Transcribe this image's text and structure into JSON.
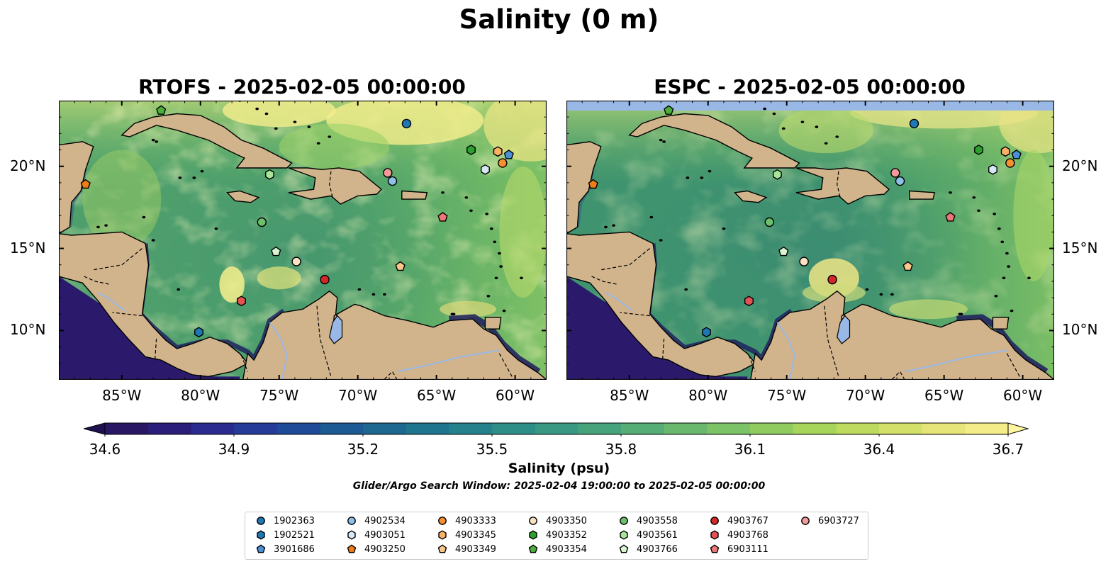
{
  "suptitle": "Salinity (0 m)",
  "panels": [
    {
      "title": "RTOFS - 2025-02-05 00:00:00",
      "model": "rtofs"
    },
    {
      "title": "ESPC - 2025-02-05 00:00:00",
      "model": "espc"
    }
  ],
  "axes": {
    "x_ticks": [
      "85°W",
      "80°W",
      "75°W",
      "70°W",
      "65°W",
      "60°W"
    ],
    "x_tick_values": [
      -85,
      -80,
      -75,
      -70,
      -65,
      -60
    ],
    "y_ticks": [
      "20°N",
      "15°N",
      "10°N"
    ],
    "y_tick_values": [
      20,
      15,
      10
    ],
    "lon_range": [
      -89,
      -58
    ],
    "lat_range": [
      7,
      24
    ]
  },
  "colorbar": {
    "ticks": [
      "34.6",
      "34.9",
      "35.2",
      "35.5",
      "35.8",
      "36.1",
      "36.4",
      "36.7"
    ],
    "range": [
      34.6,
      36.7
    ],
    "label": "Salinity (psu)",
    "colormap": "summer-green / haline",
    "extend": "both"
  },
  "search_window": "Glider/Argo Search Window: 2025-02-04 19:00:00 to 2025-02-05 00:00:00",
  "colors": {
    "land": "#d2b48c",
    "water_bg": "#4aa070",
    "deep_low": "#2b1a6b",
    "high": "#f5ee8c",
    "lake": "#9ab8e6"
  },
  "floats": [
    {
      "id": "1902363",
      "marker": "circle",
      "color": "#1f77b4",
      "lon": -66.9,
      "lat": 22.6
    },
    {
      "id": "1902521",
      "marker": "hexagon",
      "color": "#1f77b4",
      "lon": -80.1,
      "lat": 9.9
    },
    {
      "id": "3901686",
      "marker": "pentagon",
      "color": "#4b8fd6",
      "lon": -60.4,
      "lat": 20.7
    },
    {
      "id": "4902534",
      "marker": "circle",
      "color": "#8ec1ea",
      "lon": -67.8,
      "lat": 19.1
    },
    {
      "id": "4903051",
      "marker": "hexagon",
      "color": "#d6e8f8",
      "lon": -61.9,
      "lat": 19.8
    },
    {
      "id": "4903250",
      "marker": "pentagon",
      "color": "#ef7c14",
      "lon": -87.3,
      "lat": 18.9
    },
    {
      "id": "4903333",
      "marker": "circle",
      "color": "#f7902f",
      "lon": -60.8,
      "lat": 20.2
    },
    {
      "id": "4903345",
      "marker": "hexagon",
      "color": "#fbb066",
      "lon": -61.1,
      "lat": 20.9
    },
    {
      "id": "4903349",
      "marker": "pentagon",
      "color": "#fcc78b",
      "lon": -67.3,
      "lat": 13.9
    },
    {
      "id": "4903350",
      "marker": "circle",
      "color": "#fbe1c4",
      "lon": -73.9,
      "lat": 14.2
    },
    {
      "id": "4903352",
      "marker": "hexagon",
      "color": "#2ca02c",
      "lon": -62.8,
      "lat": 21.0
    },
    {
      "id": "4903354",
      "marker": "pentagon",
      "color": "#4caf3c",
      "lon": -82.5,
      "lat": 23.4
    },
    {
      "id": "4903558",
      "marker": "circle",
      "color": "#6cc06c",
      "lon": -76.1,
      "lat": 16.6
    },
    {
      "id": "4903561",
      "marker": "hexagon",
      "color": "#a8e49a",
      "lon": -75.6,
      "lat": 19.5
    },
    {
      "id": "4903766",
      "marker": "pentagon",
      "color": "#d8f5cf",
      "lon": -75.2,
      "lat": 14.8
    },
    {
      "id": "4903767",
      "marker": "circle",
      "color": "#d62728",
      "lon": -72.1,
      "lat": 13.1
    },
    {
      "id": "4903768",
      "marker": "hexagon",
      "color": "#e45252",
      "lon": -77.4,
      "lat": 11.8
    },
    {
      "id": "6903111",
      "marker": "pentagon",
      "color": "#ee7777",
      "lon": -64.6,
      "lat": 16.9
    },
    {
      "id": "6903727",
      "marker": "circle",
      "color": "#f79a9a",
      "lon": -68.1,
      "lat": 19.6
    }
  ]
}
